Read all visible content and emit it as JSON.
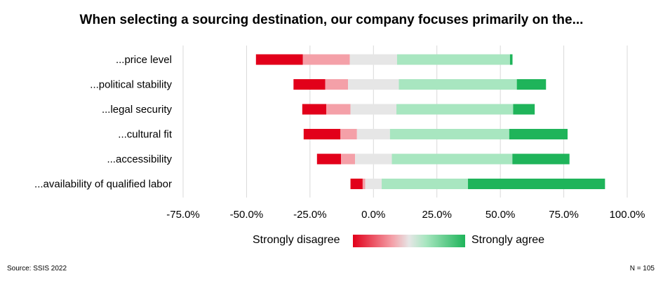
{
  "chart_data": {
    "type": "bar",
    "stacked": true,
    "diverging": true,
    "orientation": "horizontal",
    "title": "When selecting a sourcing destination, our company focuses primarily on the...",
    "categories": [
      "...price level",
      "...political stability",
      "...legal security",
      "...cultural fit",
      "...accessibility",
      "...availability of qualified labor"
    ],
    "series": [
      {
        "name": "",
        "color": "#e2001a",
        "values": [
          18.5,
          12.5,
          9.5,
          14.5,
          9.5,
          4.8
        ]
      },
      {
        "name": "",
        "color": "#f4a0a8",
        "values": [
          18.5,
          9.0,
          9.5,
          6.5,
          5.5,
          1.0
        ]
      },
      {
        "name": "",
        "color": "#e6e6e6",
        "values": [
          18.6,
          20.0,
          18.1,
          13.0,
          14.5,
          6.5
        ]
      },
      {
        "name": "",
        "color": "#a8e6c0",
        "values": [
          44.5,
          46.5,
          46.0,
          47.0,
          47.5,
          34.0
        ]
      },
      {
        "name": "",
        "color": "#1fb45a",
        "values": [
          1.0,
          11.5,
          8.5,
          23.0,
          22.5,
          54.0
        ]
      }
    ],
    "x_ticks": [
      "-75.0%",
      "-50.0%",
      "-25.0%",
      "0.0%",
      "25.0%",
      "50.0%",
      "75.0%",
      "100.0%"
    ],
    "xlim": [
      -75,
      100
    ],
    "grid": true,
    "legend": {
      "left_label": "Strongly disagree",
      "right_label": "Strongly agree",
      "position": "bottom"
    }
  },
  "footer": {
    "source": "Source: SSIS 2022",
    "n": "N = 105"
  }
}
